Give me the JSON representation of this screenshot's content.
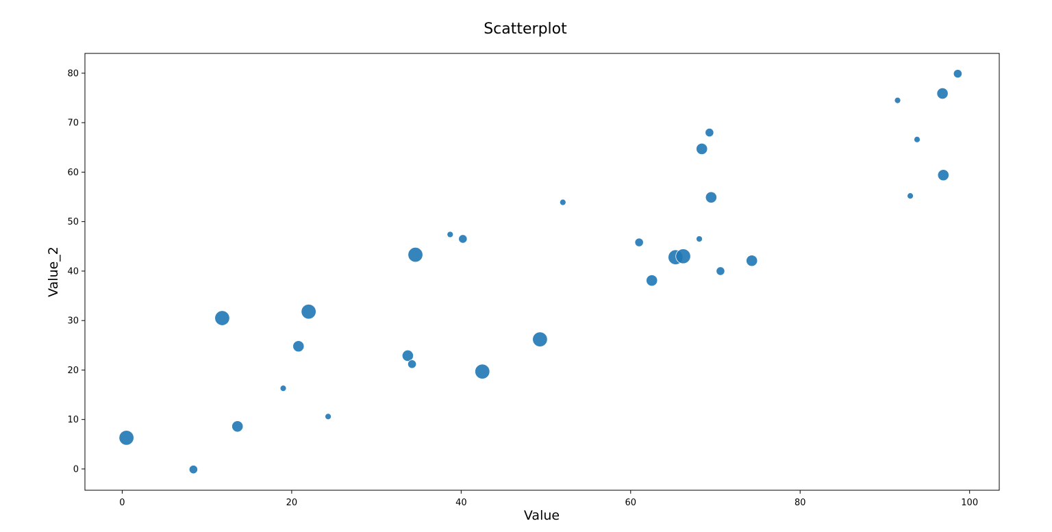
{
  "chart_data": {
    "type": "scatter",
    "title": "Scatterplot",
    "xlabel": "Value",
    "ylabel": "Value_2",
    "xlim": [
      -4.4,
      103.5
    ],
    "ylim": [
      -4.3,
      84.0
    ],
    "xticks": [
      0,
      20,
      40,
      60,
      80,
      100
    ],
    "yticks": [
      0,
      10,
      20,
      30,
      40,
      50,
      60,
      70,
      80
    ],
    "grid": false,
    "marker_color": "#1f77b4",
    "points": [
      {
        "x": 0.5,
        "y": 6.3,
        "size": 3
      },
      {
        "x": 8.4,
        "y": -0.1,
        "size": 1
      },
      {
        "x": 11.8,
        "y": 30.5,
        "size": 3
      },
      {
        "x": 13.6,
        "y": 8.6,
        "size": 2
      },
      {
        "x": 19.0,
        "y": 16.3,
        "size": 0
      },
      {
        "x": 20.8,
        "y": 24.8,
        "size": 2
      },
      {
        "x": 22.0,
        "y": 31.8,
        "size": 3
      },
      {
        "x": 24.3,
        "y": 10.6,
        "size": 0
      },
      {
        "x": 33.7,
        "y": 22.9,
        "size": 2
      },
      {
        "x": 34.2,
        "y": 21.2,
        "size": 1
      },
      {
        "x": 34.6,
        "y": 43.3,
        "size": 3
      },
      {
        "x": 38.7,
        "y": 47.4,
        "size": 0
      },
      {
        "x": 40.2,
        "y": 46.5,
        "size": 1
      },
      {
        "x": 42.5,
        "y": 19.7,
        "size": 3
      },
      {
        "x": 49.3,
        "y": 26.2,
        "size": 3
      },
      {
        "x": 52.0,
        "y": 53.9,
        "size": 0
      },
      {
        "x": 61.0,
        "y": 45.8,
        "size": 1
      },
      {
        "x": 62.5,
        "y": 38.1,
        "size": 2
      },
      {
        "x": 65.3,
        "y": 42.8,
        "size": 3
      },
      {
        "x": 66.2,
        "y": 43.0,
        "size": 3
      },
      {
        "x": 68.1,
        "y": 46.5,
        "size": 0
      },
      {
        "x": 68.4,
        "y": 64.7,
        "size": 2
      },
      {
        "x": 69.3,
        "y": 68.0,
        "size": 1
      },
      {
        "x": 69.5,
        "y": 54.9,
        "size": 2
      },
      {
        "x": 70.6,
        "y": 40.0,
        "size": 1
      },
      {
        "x": 74.3,
        "y": 42.1,
        "size": 2
      },
      {
        "x": 91.5,
        "y": 74.5,
        "size": 0
      },
      {
        "x": 93.0,
        "y": 55.2,
        "size": 0
      },
      {
        "x": 93.8,
        "y": 66.6,
        "size": 0
      },
      {
        "x": 96.8,
        "y": 75.9,
        "size": 2
      },
      {
        "x": 96.9,
        "y": 59.4,
        "size": 2
      },
      {
        "x": 98.6,
        "y": 79.9,
        "size": 1
      }
    ]
  }
}
